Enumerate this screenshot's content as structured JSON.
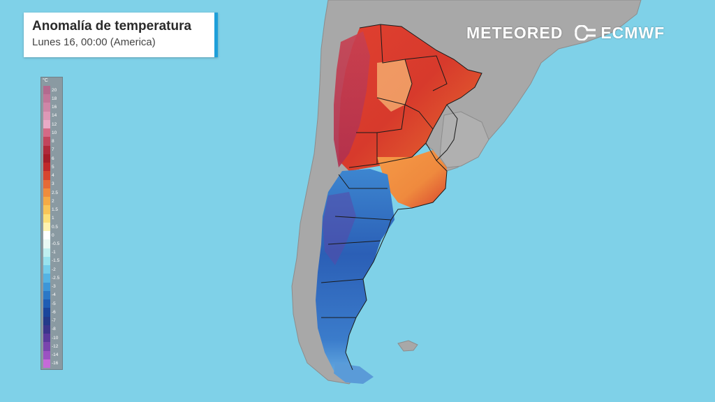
{
  "header": {
    "title": "Anomalía de temperatura",
    "subtitle": "Lunes 16, 00:00 (America)"
  },
  "brands": {
    "meteored": "METEORED",
    "ecmwf": "ECMWF"
  },
  "legend": {
    "unit": "°C",
    "labels": [
      "20",
      "18",
      "16",
      "14",
      "12",
      "10",
      "8",
      "7",
      "6",
      "5",
      "4",
      "3",
      "2.5",
      "2",
      "1.5",
      "1",
      "0.5",
      "0",
      "-0.5",
      "-1",
      "-1.5",
      "-2",
      "-2.5",
      "-3",
      "-4",
      "-5",
      "-6",
      "-7",
      "-8",
      "-10",
      "-12",
      "-14",
      "-16"
    ],
    "colors": [
      "#b36a8e",
      "#c27699",
      "#cf86a7",
      "#dd98b6",
      "#e9aac6",
      "#d46a86",
      "#c2455c",
      "#b02a3a",
      "#a51d28",
      "#c0282a",
      "#d8452e",
      "#e66a35",
      "#f08c3c",
      "#f5aa45",
      "#f8c558",
      "#fbe07a",
      "#fdf3b0",
      "#ffffff",
      "#e9f8f4",
      "#bfeff0",
      "#98e2ee",
      "#74cdea",
      "#55b3e3",
      "#3d96d8",
      "#2b78c7",
      "#1f5db4",
      "#1b469c",
      "#243a8a",
      "#3b358c",
      "#5a3a9c",
      "#7a45ae",
      "#9b52c2",
      "#c66ad8"
    ]
  },
  "colors": {
    "ocean": "#7fd1e8",
    "land": "#a8a8a8",
    "border": "#1a1a1a",
    "title_accent": "#1e9fd9"
  }
}
